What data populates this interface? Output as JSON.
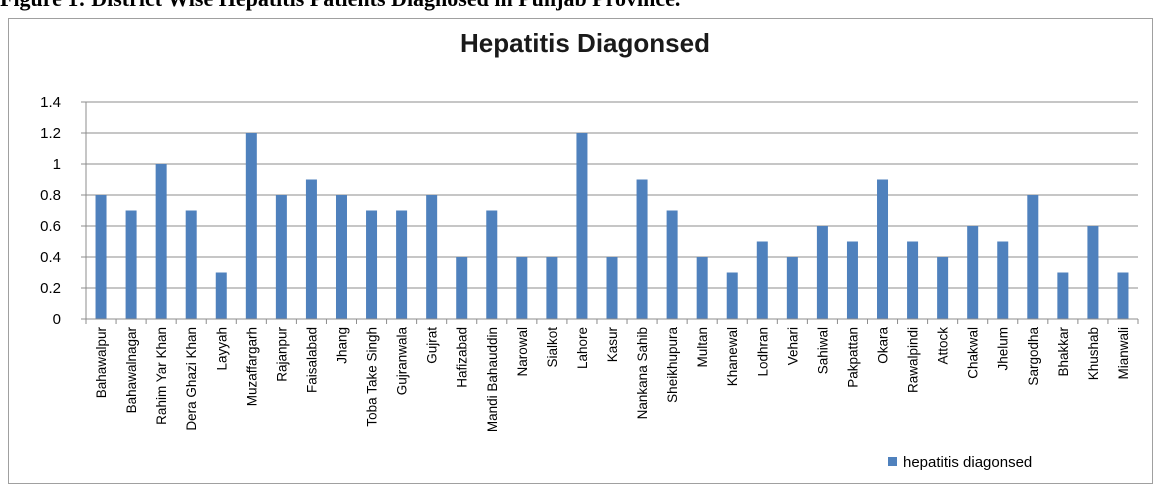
{
  "caption": "Figure 1: District Wise Hepatitis Patients Diagnosed in Punjab Province.",
  "chart_data": {
    "type": "bar",
    "title": "Hepatitis Diagonsed",
    "xlabel": "",
    "ylabel": "",
    "ylim": [
      0,
      1.4
    ],
    "yticks": [
      "0",
      "0.2",
      "0.4",
      "0.6",
      "0.8",
      "1",
      "1.2",
      "1.4"
    ],
    "grid": true,
    "legend_position": "bottom-right",
    "bar_color": "#4f81bd",
    "categories": [
      "Bahawalpur",
      "Bahawalnagar",
      "Rahim Yar Khan",
      "Dera Ghazi Khan",
      "Layyah",
      "Muzaffargarh",
      "Rajanpur",
      "Faisalabad",
      "Jhang",
      "Toba Take Singh",
      "Gujranwala",
      "Gujrat",
      "Hafizabad",
      "Mandi Bahauddin",
      "Narowal",
      "Sialkot",
      "Lahore",
      "Kasur",
      "Nankana Sahib",
      "Sheikhupura",
      "Multan",
      "Khanewal",
      "Lodhran",
      "Vehari",
      "Sahiwal",
      "Pakpattan",
      "Okara",
      "Rawalpindi",
      "Attock",
      "Chakwal",
      "Jhelum",
      "Sargodha",
      "Bhakkar",
      "Khushab",
      "Mianwali"
    ],
    "series": [
      {
        "name": "hepatitis diagonsed",
        "values": [
          0.8,
          0.7,
          1.0,
          0.7,
          0.3,
          1.2,
          0.8,
          0.9,
          0.8,
          0.7,
          0.7,
          0.8,
          0.4,
          0.7,
          0.4,
          0.4,
          1.2,
          0.4,
          0.9,
          0.7,
          0.4,
          0.3,
          0.5,
          0.4,
          0.6,
          0.5,
          0.9,
          0.5,
          0.4,
          0.6,
          0.5,
          0.8,
          0.3,
          0.6,
          0.3
        ]
      }
    ]
  }
}
